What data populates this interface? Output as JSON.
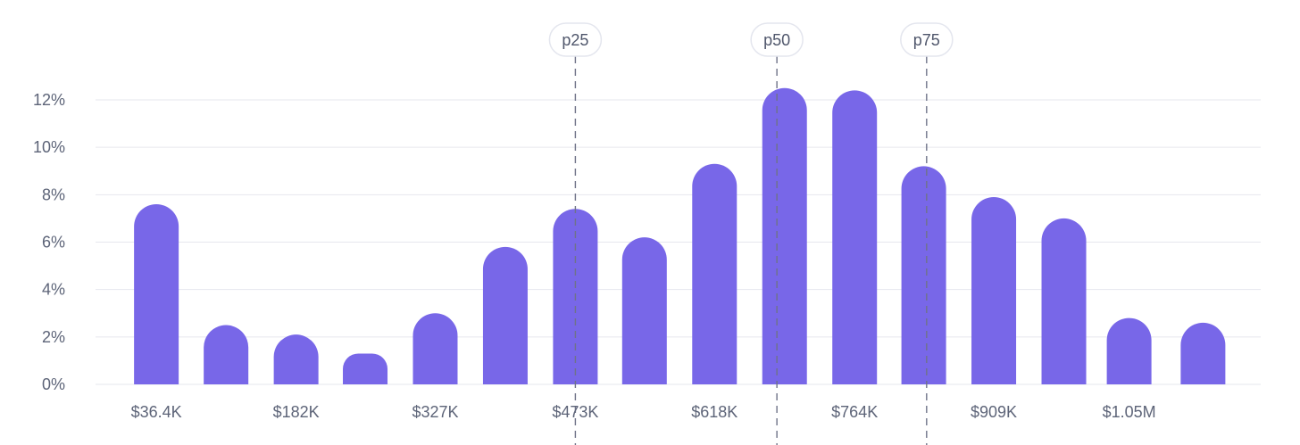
{
  "chart_data": {
    "type": "bar",
    "xlim": [
      0,
      1162000
    ],
    "ylim": [
      0,
      12
    ],
    "yticks": [
      0,
      2,
      4,
      6,
      8,
      10,
      12
    ],
    "ytick_suffix": "%",
    "grid": true,
    "colors": {
      "bar": "#7867e8",
      "grid": "#e6e7ee",
      "axis_text": "#5d6478",
      "percentile_line": "#6f7388"
    },
    "bins": [
      {
        "x": 36400,
        "value": 7.6
      },
      {
        "x": 109000,
        "value": 2.5
      },
      {
        "x": 182000,
        "value": 2.1
      },
      {
        "x": 254000,
        "value": 1.3
      },
      {
        "x": 327000,
        "value": 3.0
      },
      {
        "x": 400000,
        "value": 5.8
      },
      {
        "x": 473000,
        "value": 7.4
      },
      {
        "x": 545000,
        "value": 6.2
      },
      {
        "x": 618000,
        "value": 9.3
      },
      {
        "x": 691000,
        "value": 12.5
      },
      {
        "x": 764000,
        "value": 12.4
      },
      {
        "x": 836000,
        "value": 9.2
      },
      {
        "x": 909000,
        "value": 7.9
      },
      {
        "x": 982000,
        "value": 7.0
      },
      {
        "x": 1050000,
        "value": 2.8
      },
      {
        "x": 1127000,
        "value": 2.6
      }
    ],
    "xtick_labels": [
      {
        "x": 36400,
        "label": "$36.4K"
      },
      {
        "x": 182000,
        "label": "$182K"
      },
      {
        "x": 327000,
        "label": "$327K"
      },
      {
        "x": 473000,
        "label": "$473K"
      },
      {
        "x": 618000,
        "label": "$618K"
      },
      {
        "x": 764000,
        "label": "$764K"
      },
      {
        "x": 909000,
        "label": "$909K"
      },
      {
        "x": 1050000,
        "label": "$1.05M"
      }
    ],
    "percentiles": [
      {
        "label": "p25",
        "x": 473000
      },
      {
        "label": "p50",
        "x": 683000
      },
      {
        "label": "p75",
        "x": 839000
      }
    ]
  }
}
